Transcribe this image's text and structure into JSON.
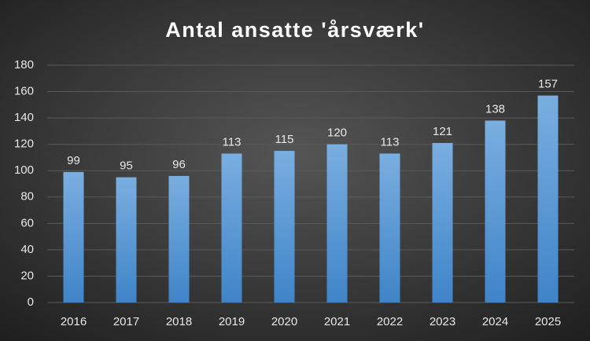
{
  "chart_data": {
    "type": "bar",
    "title": "Antal ansatte 'årsværk'",
    "categories": [
      "2016",
      "2017",
      "2018",
      "2019",
      "2020",
      "2021",
      "2022",
      "2023",
      "2024",
      "2025"
    ],
    "values": [
      99,
      95,
      96,
      113,
      115,
      120,
      113,
      121,
      138,
      157
    ],
    "color": "#5b9bd5",
    "ylim": [
      0,
      180
    ],
    "yticks": [
      0,
      20,
      40,
      60,
      80,
      100,
      120,
      140,
      160,
      180
    ],
    "grid": true
  }
}
